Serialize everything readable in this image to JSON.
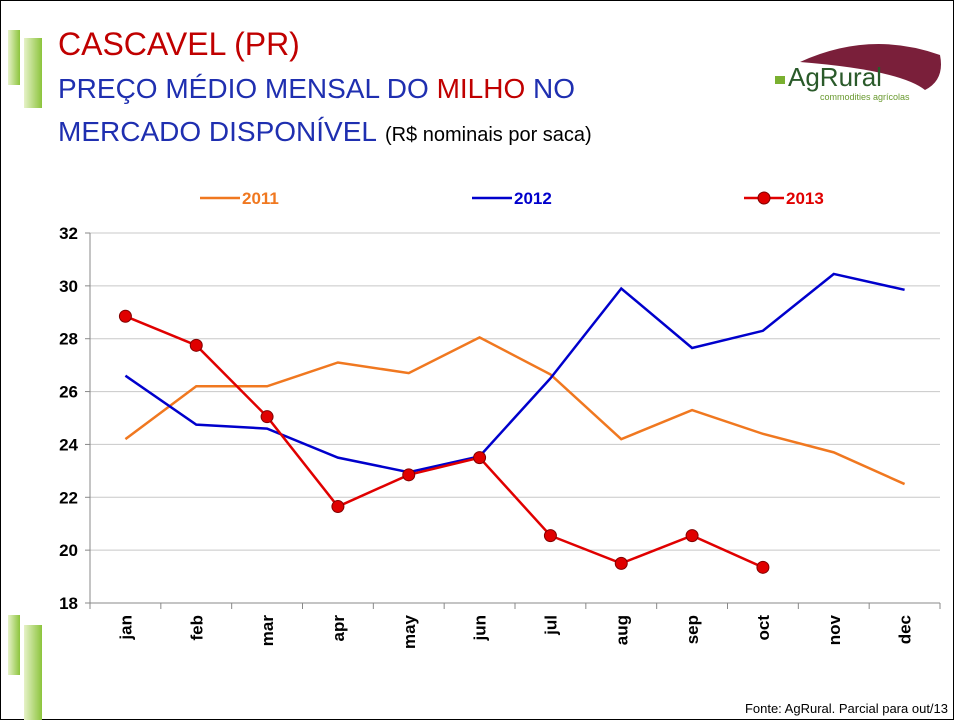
{
  "chart_data": {
    "type": "line",
    "title": "CASCAVEL (PR)",
    "subtitle_parts": [
      "PREÇO MÉDIO MENSAL DO ",
      "MILHO",
      " NO",
      "MERCADO DISPONÍVEL",
      "(R$ nominais por saca)"
    ],
    "logo": "AgRural",
    "logo_tagline": "commodities agrícolas",
    "source": "Fonte: AgRural. Parcial para out/13",
    "categories": [
      "jan",
      "feb",
      "mar",
      "apr",
      "may",
      "jun",
      "jul",
      "aug",
      "sep",
      "oct",
      "nov",
      "dec"
    ],
    "series": [
      {
        "name": "2011",
        "color": "#f07820",
        "markers": false,
        "values": [
          24.2,
          26.2,
          26.2,
          27.1,
          26.7,
          28.05,
          26.65,
          24.2,
          25.3,
          24.4,
          23.7,
          22.5
        ]
      },
      {
        "name": "2012",
        "color": "#0000cc",
        "markers": false,
        "values": [
          26.6,
          24.75,
          24.6,
          23.5,
          22.95,
          23.55,
          26.5,
          29.9,
          27.65,
          28.3,
          30.45,
          29.85
        ]
      },
      {
        "name": "2013",
        "color": "#e00000",
        "markers": true,
        "values": [
          28.85,
          27.75,
          25.05,
          21.65,
          22.85,
          23.5,
          20.55,
          19.5,
          20.55,
          19.35,
          null,
          null
        ]
      }
    ],
    "ylim": [
      18,
      32
    ],
    "yticks": [
      18,
      20,
      22,
      24,
      26,
      28,
      30,
      32
    ],
    "grid": true,
    "legend": "top"
  }
}
